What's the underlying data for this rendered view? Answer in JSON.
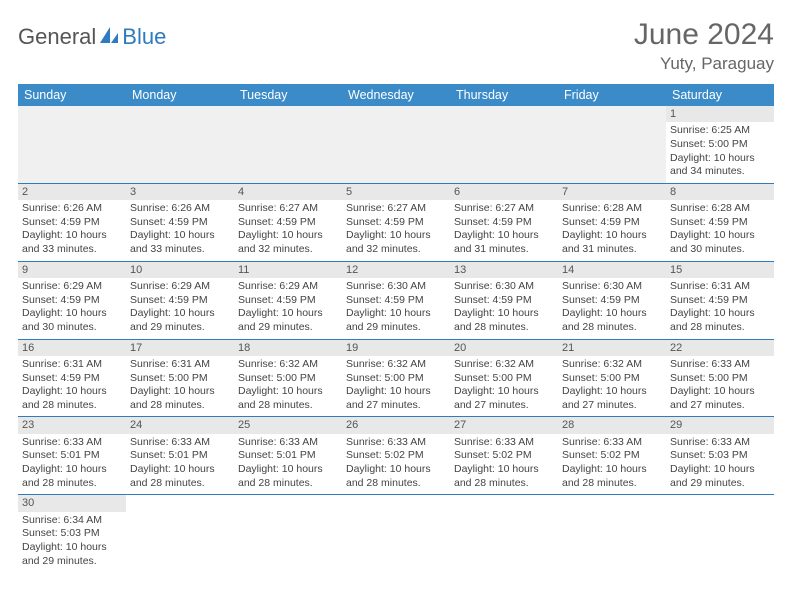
{
  "logo": {
    "part1": "General",
    "part2": "Blue"
  },
  "title": "June 2024",
  "location": "Yuty, Paraguay",
  "colors": {
    "header_bg": "#3b8bc8",
    "header_fg": "#ffffff",
    "rule": "#2f7bbf",
    "daybar_bg": "#e8e8e8",
    "empty_bg": "#f0f0f0",
    "text": "#444444",
    "logo_blue": "#2f7bbf",
    "logo_gray": "#555555"
  },
  "weekdays": [
    "Sunday",
    "Monday",
    "Tuesday",
    "Wednesday",
    "Thursday",
    "Friday",
    "Saturday"
  ],
  "weeks": [
    [
      null,
      null,
      null,
      null,
      null,
      null,
      {
        "d": "1",
        "sr": "6:25 AM",
        "ss": "5:00 PM",
        "dl": "10 hours and 34 minutes."
      }
    ],
    [
      {
        "d": "2",
        "sr": "6:26 AM",
        "ss": "4:59 PM",
        "dl": "10 hours and 33 minutes."
      },
      {
        "d": "3",
        "sr": "6:26 AM",
        "ss": "4:59 PM",
        "dl": "10 hours and 33 minutes."
      },
      {
        "d": "4",
        "sr": "6:27 AM",
        "ss": "4:59 PM",
        "dl": "10 hours and 32 minutes."
      },
      {
        "d": "5",
        "sr": "6:27 AM",
        "ss": "4:59 PM",
        "dl": "10 hours and 32 minutes."
      },
      {
        "d": "6",
        "sr": "6:27 AM",
        "ss": "4:59 PM",
        "dl": "10 hours and 31 minutes."
      },
      {
        "d": "7",
        "sr": "6:28 AM",
        "ss": "4:59 PM",
        "dl": "10 hours and 31 minutes."
      },
      {
        "d": "8",
        "sr": "6:28 AM",
        "ss": "4:59 PM",
        "dl": "10 hours and 30 minutes."
      }
    ],
    [
      {
        "d": "9",
        "sr": "6:29 AM",
        "ss": "4:59 PM",
        "dl": "10 hours and 30 minutes."
      },
      {
        "d": "10",
        "sr": "6:29 AM",
        "ss": "4:59 PM",
        "dl": "10 hours and 29 minutes."
      },
      {
        "d": "11",
        "sr": "6:29 AM",
        "ss": "4:59 PM",
        "dl": "10 hours and 29 minutes."
      },
      {
        "d": "12",
        "sr": "6:30 AM",
        "ss": "4:59 PM",
        "dl": "10 hours and 29 minutes."
      },
      {
        "d": "13",
        "sr": "6:30 AM",
        "ss": "4:59 PM",
        "dl": "10 hours and 28 minutes."
      },
      {
        "d": "14",
        "sr": "6:30 AM",
        "ss": "4:59 PM",
        "dl": "10 hours and 28 minutes."
      },
      {
        "d": "15",
        "sr": "6:31 AM",
        "ss": "4:59 PM",
        "dl": "10 hours and 28 minutes."
      }
    ],
    [
      {
        "d": "16",
        "sr": "6:31 AM",
        "ss": "4:59 PM",
        "dl": "10 hours and 28 minutes."
      },
      {
        "d": "17",
        "sr": "6:31 AM",
        "ss": "5:00 PM",
        "dl": "10 hours and 28 minutes."
      },
      {
        "d": "18",
        "sr": "6:32 AM",
        "ss": "5:00 PM",
        "dl": "10 hours and 28 minutes."
      },
      {
        "d": "19",
        "sr": "6:32 AM",
        "ss": "5:00 PM",
        "dl": "10 hours and 27 minutes."
      },
      {
        "d": "20",
        "sr": "6:32 AM",
        "ss": "5:00 PM",
        "dl": "10 hours and 27 minutes."
      },
      {
        "d": "21",
        "sr": "6:32 AM",
        "ss": "5:00 PM",
        "dl": "10 hours and 27 minutes."
      },
      {
        "d": "22",
        "sr": "6:33 AM",
        "ss": "5:00 PM",
        "dl": "10 hours and 27 minutes."
      }
    ],
    [
      {
        "d": "23",
        "sr": "6:33 AM",
        "ss": "5:01 PM",
        "dl": "10 hours and 28 minutes."
      },
      {
        "d": "24",
        "sr": "6:33 AM",
        "ss": "5:01 PM",
        "dl": "10 hours and 28 minutes."
      },
      {
        "d": "25",
        "sr": "6:33 AM",
        "ss": "5:01 PM",
        "dl": "10 hours and 28 minutes."
      },
      {
        "d": "26",
        "sr": "6:33 AM",
        "ss": "5:02 PM",
        "dl": "10 hours and 28 minutes."
      },
      {
        "d": "27",
        "sr": "6:33 AM",
        "ss": "5:02 PM",
        "dl": "10 hours and 28 minutes."
      },
      {
        "d": "28",
        "sr": "6:33 AM",
        "ss": "5:02 PM",
        "dl": "10 hours and 28 minutes."
      },
      {
        "d": "29",
        "sr": "6:33 AM",
        "ss": "5:03 PM",
        "dl": "10 hours and 29 minutes."
      }
    ],
    [
      {
        "d": "30",
        "sr": "6:34 AM",
        "ss": "5:03 PM",
        "dl": "10 hours and 29 minutes."
      },
      null,
      null,
      null,
      null,
      null,
      null
    ]
  ],
  "labels": {
    "sunrise": "Sunrise:",
    "sunset": "Sunset:",
    "daylight": "Daylight:"
  }
}
